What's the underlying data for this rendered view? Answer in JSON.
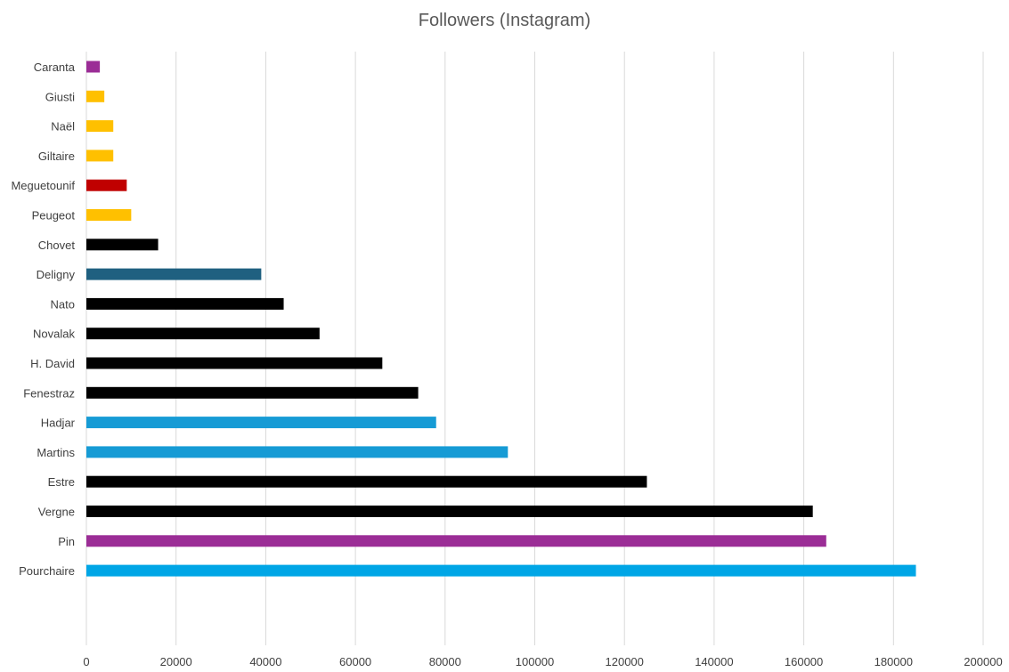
{
  "chart_data": {
    "type": "bar",
    "orientation": "horizontal",
    "title": "Followers (Instagram)",
    "xlabel": "",
    "ylabel": "",
    "xlim": [
      0,
      200000
    ],
    "x_ticks": [
      0,
      20000,
      40000,
      60000,
      80000,
      100000,
      120000,
      140000,
      160000,
      180000,
      200000
    ],
    "grid": true,
    "legend": "none",
    "categories": [
      "Caranta",
      "Giusti",
      "Naël",
      "Giltaire",
      "Meguetounif",
      "Peugeot",
      "Chovet",
      "Deligny",
      "Nato",
      "Novalak",
      "H. David",
      "Fenestraz",
      "Hadjar",
      "Martins",
      "Estre",
      "Vergne",
      "Pin",
      "Pourchaire"
    ],
    "values": [
      3000,
      4000,
      6000,
      6000,
      9000,
      10000,
      16000,
      39000,
      44000,
      52000,
      66000,
      74000,
      78000,
      94000,
      125000,
      162000,
      165000,
      185000
    ],
    "colors": [
      "#9b2d96",
      "#ffc000",
      "#ffc000",
      "#ffc000",
      "#c00000",
      "#ffc000",
      "#000000",
      "#1f6080",
      "#000000",
      "#000000",
      "#000000",
      "#000000",
      "#169bd5",
      "#169bd5",
      "#000000",
      "#000000",
      "#9b2d96",
      "#00a6e6"
    ]
  }
}
